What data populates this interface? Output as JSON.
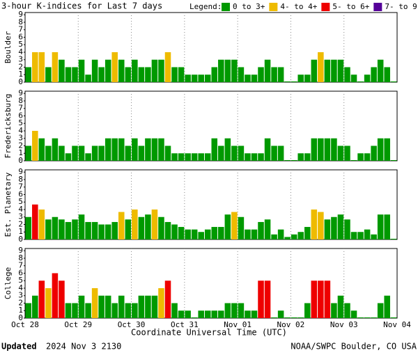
{
  "header": {
    "title": "3-hour K-indices for Last 7 days",
    "legend_title": "Legend:",
    "legend": [
      {
        "label": "0 to 3+",
        "color": "#009900"
      },
      {
        "label": "4- to 4+",
        "color": "#eebb00"
      },
      {
        "label": "5- to 6+",
        "color": "#ee0000"
      },
      {
        "label": "7- to 9",
        "color": "#550099"
      }
    ]
  },
  "chart_data": [
    {
      "type": "bar",
      "ylabel": "Boulder",
      "ylim": [
        0,
        9.3
      ],
      "yticks": [
        0,
        1,
        2,
        3,
        4,
        5,
        6,
        7,
        8,
        9
      ],
      "values": [
        2,
        4,
        4,
        2,
        4,
        3,
        2,
        2,
        3,
        1,
        3,
        2,
        3,
        4,
        3,
        2,
        3,
        2,
        2,
        3,
        3,
        4,
        2,
        2,
        1,
        1,
        1,
        1,
        2,
        3,
        3,
        3,
        2,
        1,
        1,
        2,
        3,
        2,
        2,
        0,
        0,
        1,
        1,
        3,
        4,
        3,
        3,
        3,
        2,
        1,
        0,
        1,
        2,
        3,
        2,
        0
      ],
      "colors": [
        "#009900",
        "#eebb00",
        "#eebb00",
        "#009900",
        "#eebb00",
        "#009900",
        "#009900",
        "#009900",
        "#009900",
        "#009900",
        "#009900",
        "#009900",
        "#009900",
        "#eebb00",
        "#009900",
        "#009900",
        "#009900",
        "#009900",
        "#009900",
        "#009900",
        "#009900",
        "#eebb00",
        "#009900",
        "#009900",
        "#009900",
        "#009900",
        "#009900",
        "#009900",
        "#009900",
        "#009900",
        "#009900",
        "#009900",
        "#009900",
        "#009900",
        "#009900",
        "#009900",
        "#009900",
        "#009900",
        "#009900",
        "#009900",
        "#009900",
        "#009900",
        "#009900",
        "#009900",
        "#eebb00",
        "#009900",
        "#009900",
        "#009900",
        "#009900",
        "#009900",
        "#009900",
        "#009900",
        "#009900",
        "#009900",
        "#009900",
        "#009900"
      ]
    },
    {
      "type": "bar",
      "ylabel": "Fredericksburg",
      "ylim": [
        0,
        9.3
      ],
      "yticks": [
        0,
        1,
        2,
        3,
        4,
        5,
        6,
        7,
        8,
        9
      ],
      "values": [
        2,
        4,
        3,
        2,
        3,
        2,
        1,
        2,
        2,
        1,
        2,
        2,
        3,
        3,
        3,
        2,
        3,
        2,
        3,
        3,
        3,
        2,
        1,
        1,
        1,
        1,
        1,
        1,
        3,
        2,
        3,
        2,
        2,
        1,
        1,
        1,
        3,
        2,
        2,
        0,
        0,
        1,
        1,
        3,
        3,
        3,
        3,
        2,
        2,
        0,
        1,
        1,
        2,
        3,
        3,
        0
      ],
      "colors": [
        "#009900",
        "#eebb00",
        "#009900",
        "#009900",
        "#009900",
        "#009900",
        "#009900",
        "#009900",
        "#009900",
        "#009900",
        "#009900",
        "#009900",
        "#009900",
        "#009900",
        "#009900",
        "#009900",
        "#009900",
        "#009900",
        "#009900",
        "#009900",
        "#009900",
        "#009900",
        "#009900",
        "#009900",
        "#009900",
        "#009900",
        "#009900",
        "#009900",
        "#009900",
        "#009900",
        "#009900",
        "#009900",
        "#009900",
        "#009900",
        "#009900",
        "#009900",
        "#009900",
        "#009900",
        "#009900",
        "#009900",
        "#009900",
        "#009900",
        "#009900",
        "#009900",
        "#009900",
        "#009900",
        "#009900",
        "#009900",
        "#009900",
        "#009900",
        "#009900",
        "#009900",
        "#009900",
        "#009900",
        "#009900",
        "#009900"
      ]
    },
    {
      "type": "bar",
      "ylabel": "Est. Planetary",
      "ylim": [
        0,
        9.3
      ],
      "yticks": [
        0,
        1,
        2,
        3,
        4,
        5,
        6,
        7,
        8,
        9
      ],
      "values": [
        3,
        4.67,
        4,
        2.67,
        3,
        2.67,
        2.33,
        2.67,
        3.33,
        2.33,
        2.33,
        2,
        2,
        2.33,
        3.67,
        2.67,
        4,
        3,
        3.33,
        4,
        3,
        2.33,
        2,
        1.67,
        1.33,
        1.33,
        1,
        1.33,
        1.67,
        1.67,
        3.33,
        3.67,
        3,
        1.33,
        1.33,
        2.33,
        2.67,
        0.67,
        1.33,
        0.33,
        0.67,
        1,
        1.67,
        4,
        3.67,
        2.67,
        3,
        3.33,
        2.67,
        1,
        1,
        1.33,
        0.67,
        3.33,
        3.33,
        0
      ],
      "colors": [
        "#009900",
        "#ee0000",
        "#eebb00",
        "#009900",
        "#009900",
        "#009900",
        "#009900",
        "#009900",
        "#009900",
        "#009900",
        "#009900",
        "#009900",
        "#009900",
        "#009900",
        "#eebb00",
        "#009900",
        "#eebb00",
        "#009900",
        "#009900",
        "#eebb00",
        "#009900",
        "#009900",
        "#009900",
        "#009900",
        "#009900",
        "#009900",
        "#009900",
        "#009900",
        "#009900",
        "#009900",
        "#009900",
        "#eebb00",
        "#009900",
        "#009900",
        "#009900",
        "#009900",
        "#009900",
        "#009900",
        "#009900",
        "#009900",
        "#009900",
        "#009900",
        "#009900",
        "#eebb00",
        "#eebb00",
        "#009900",
        "#009900",
        "#009900",
        "#009900",
        "#009900",
        "#009900",
        "#009900",
        "#009900",
        "#009900",
        "#009900",
        "#009900"
      ]
    },
    {
      "type": "bar",
      "ylabel": "College",
      "ylim": [
        0,
        9.3
      ],
      "yticks": [
        0,
        1,
        2,
        3,
        4,
        5,
        6,
        7,
        8,
        9
      ],
      "values": [
        2,
        3,
        5,
        4,
        6,
        5,
        2,
        2,
        3,
        2,
        4,
        3,
        3,
        2,
        3,
        2,
        2,
        3,
        3,
        3,
        4,
        5,
        2,
        1,
        1,
        0,
        1,
        1,
        1,
        1,
        2,
        2,
        2,
        1,
        1,
        5,
        5,
        0,
        1,
        0,
        0,
        0,
        2,
        5,
        5,
        5,
        2,
        3,
        2,
        1,
        0,
        0,
        0,
        2,
        3,
        0
      ],
      "colors": [
        "#009900",
        "#009900",
        "#ee0000",
        "#eebb00",
        "#ee0000",
        "#ee0000",
        "#009900",
        "#009900",
        "#009900",
        "#009900",
        "#eebb00",
        "#009900",
        "#009900",
        "#009900",
        "#009900",
        "#009900",
        "#009900",
        "#009900",
        "#009900",
        "#009900",
        "#eebb00",
        "#ee0000",
        "#009900",
        "#009900",
        "#009900",
        "#009900",
        "#009900",
        "#009900",
        "#009900",
        "#009900",
        "#009900",
        "#009900",
        "#009900",
        "#009900",
        "#009900",
        "#ee0000",
        "#ee0000",
        "#009900",
        "#009900",
        "#009900",
        "#009900",
        "#009900",
        "#009900",
        "#ee0000",
        "#ee0000",
        "#ee0000",
        "#009900",
        "#009900",
        "#009900",
        "#009900",
        "#009900",
        "#009900",
        "#009900",
        "#009900",
        "#009900",
        "#009900"
      ],
      "x_labels": [
        "Oct 28",
        "Oct 29",
        "Oct 30",
        "Oct 31",
        "Nov 01",
        "Nov 02",
        "Nov 03",
        "Nov 04"
      ],
      "xlabel": "Coordinate Universal Time (UTC)"
    }
  ],
  "footer": {
    "updated_label": "Updated",
    "updated": "2024 Nov  3 2130",
    "source": "NOAA/SWPC Boulder, CO USA"
  }
}
